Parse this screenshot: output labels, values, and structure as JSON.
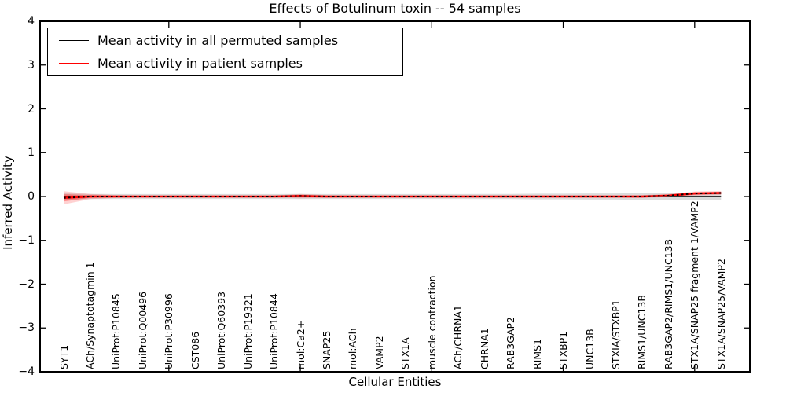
{
  "accent_colors": {
    "permuted_line": "#000000",
    "patient_line": "#ff0000",
    "axis": "#000000",
    "gray_band": "rgba(125,125,125,0.28)",
    "red_band": "rgba(255,0,0,0.18)",
    "red_band_inner": "rgba(255,0,0,0.32)"
  },
  "legend": {
    "items": [
      {
        "label": "Mean activity in all permuted samples",
        "color": "#000000",
        "thickness": 1.6
      },
      {
        "label": "Mean activity in patient samples",
        "color": "#ff0000",
        "thickness": 2.0
      }
    ]
  },
  "chart_data": {
    "type": "line",
    "title": "Effects of Botulinum toxin -- 54 samples",
    "xlabel": "Cellular Entities",
    "ylabel": "Inferred Activity",
    "ylim": [
      -4,
      4
    ],
    "grid": false,
    "legend_position": "upper left",
    "y_tick_labels": [
      "4",
      "3",
      "2",
      "1",
      "0",
      "−1",
      "−2",
      "−3",
      "−4"
    ],
    "x_major_tick_indices": [
      4,
      9,
      14,
      19,
      24
    ],
    "categories": [
      "SYT1",
      "ACh/Synaptotagmin 1",
      "UniProt:P10845",
      "UniProt:Q00496",
      "UniProt:P30996",
      "CST086",
      "UniProt:Q60393",
      "UniProt:P19321",
      "UniProt:P10844",
      "mol:Ca2+",
      "SNAP25",
      "mol:ACh",
      "VAMP2",
      "STX1A",
      "muscle contraction",
      "ACh/CHRNA1",
      "CHRNA1",
      "RAB3GAP2",
      "RIMS1",
      "STXBP1",
      "UNC13B",
      "STXIA/STXBP1",
      "RIMS1/UNC13B",
      "RAB3GAP2/RIMS1/UNC13B",
      "STX1A/SNAP25 fragment 1/VAMP2",
      "STX1A/SNAP25/VAMP2"
    ],
    "series": [
      {
        "name": "Mean activity in all permuted samples",
        "color": "#000000",
        "values": [
          0,
          0,
          0,
          0,
          0,
          0,
          0,
          0,
          0,
          0,
          0,
          0,
          0,
          0,
          0,
          0,
          0,
          0,
          0,
          0,
          0,
          0,
          0,
          0,
          0,
          0
        ],
        "band_halfwidth": [
          0.07,
          0.06,
          0.055,
          0.055,
          0.055,
          0.055,
          0.055,
          0.055,
          0.055,
          0.06,
          0.055,
          0.055,
          0.055,
          0.055,
          0.055,
          0.055,
          0.06,
          0.06,
          0.065,
          0.065,
          0.07,
          0.07,
          0.075,
          0.08,
          0.09,
          0.09
        ]
      },
      {
        "name": "Mean activity in patient samples",
        "color": "#ff0000",
        "values": [
          -0.03,
          0,
          0,
          0,
          0,
          0,
          0,
          0,
          0,
          0.01,
          0,
          0,
          0,
          0,
          0,
          0,
          0,
          0,
          0,
          0,
          0,
          0,
          0,
          0.02,
          0.07,
          0.08
        ],
        "band_halfwidth": [
          0.15,
          0.06,
          0.03,
          0.025,
          0.025,
          0.025,
          0.025,
          0.025,
          0.025,
          0.05,
          0.03,
          0.025,
          0.025,
          0.025,
          0.025,
          0.025,
          0.025,
          0.025,
          0.025,
          0.025,
          0.025,
          0.025,
          0.03,
          0.035,
          0.045,
          0.045
        ]
      }
    ]
  }
}
